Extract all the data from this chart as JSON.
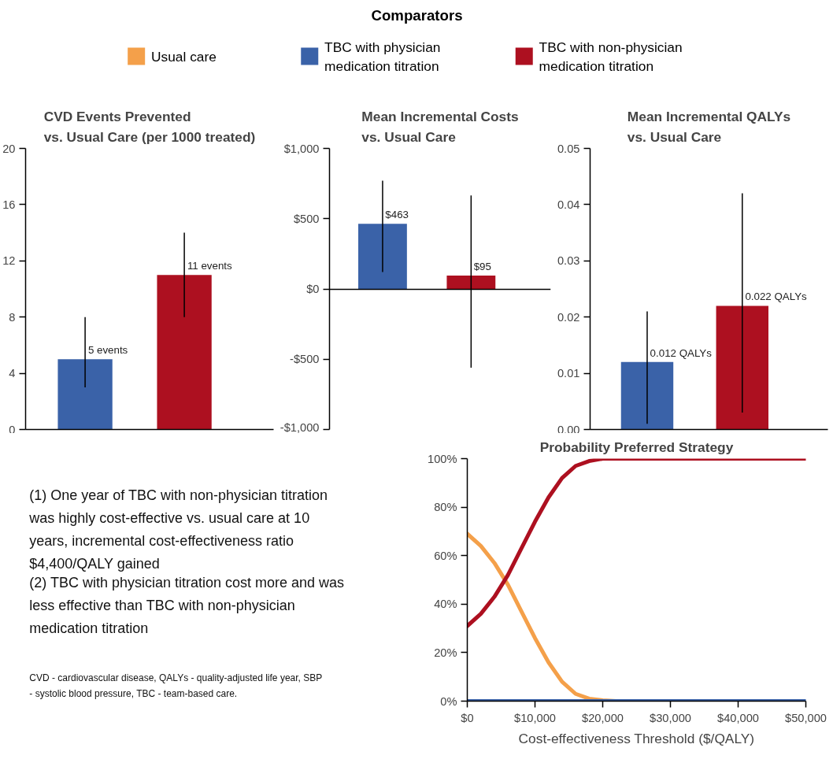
{
  "chart_data": [
    {
      "type": "bar",
      "title": "CVD Events Prevented\nvs. Usual Care (per 1000 treated)",
      "categories": [
        null,
        null
      ],
      "values": [
        5,
        11
      ],
      "colors": [
        "#3a62a8",
        "#ad1020"
      ],
      "errors": [
        [
          3,
          8
        ],
        [
          8,
          14
        ]
      ],
      "value_labels": [
        "5 events",
        "11 events"
      ],
      "ylim": [
        0,
        20
      ],
      "yticks": [
        0,
        4,
        8,
        12,
        16,
        20
      ],
      "tick_labels": "y"
    },
    {
      "type": "bar",
      "title": "Mean Incremental Costs\nvs. Usual Care",
      "categories": [
        null,
        null
      ],
      "values": [
        463,
        95
      ],
      "colors": [
        "#3a62a8",
        "#ad1020"
      ],
      "errors": [
        [
          120,
          770
        ],
        [
          -560,
          665
        ]
      ],
      "value_labels": [
        "$463",
        "$95"
      ],
      "ylim": [
        -1000,
        1000
      ],
      "yticks": [
        {
          "value": -1000,
          "label": "-$1,000"
        },
        {
          "value": -500,
          "label": "-$500"
        },
        {
          "value": 0,
          "label": "$0"
        },
        {
          "value": 500,
          "label": "$500"
        },
        {
          "value": 1000,
          "label": "$1,000"
        }
      ],
      "tick_labels": "y"
    },
    {
      "type": "bar",
      "title": "Mean Incremental QALYs\nvs. Usual Care",
      "categories": [
        null,
        null
      ],
      "values": [
        0.012,
        0.022
      ],
      "colors": [
        "#3a62a8",
        "#ad1020"
      ],
      "errors": [
        [
          0.001,
          0.021
        ],
        [
          0.003,
          0.042
        ]
      ],
      "value_labels": [
        "0.012 QALYs",
        "0.022 QALYs"
      ],
      "ylim": [
        0,
        0.05
      ],
      "yticks": [
        {
          "value": 0,
          "label": "0.00"
        },
        0.01,
        0.02,
        0.03,
        0.04,
        0.05
      ],
      "tick_labels": "y"
    },
    {
      "type": "other",
      "annotations": [
        "(1) One year of TBC with non-physician titration was highly cost-effective vs. usual care at 10 years, incremental cost-effectiveness ratio $4,400/QALY gained",
        "(2) TBC with physician titration cost more and was less effective than TBC with non-physician medication titration",
        "CVD - cardiovascular disease, QALYs - quality-adjusted life year, SBP - systolic blood pressure, TBC - team-based care."
      ]
    },
    {
      "type": "line",
      "title": "Probability Preferred Strategy",
      "xlabel": "Cost-effectiveness Threshold ($/QALY)",
      "legend_title": "Comparators",
      "legend": "top",
      "xlim": [
        0,
        50000
      ],
      "xticks": [
        {
          "value": 0,
          "label": "$0"
        },
        {
          "value": 10000,
          "label": "$10,000"
        },
        {
          "value": 20000,
          "label": "$20,000"
        },
        {
          "value": 30000,
          "label": "$30,000"
        },
        {
          "value": 40000,
          "label": "$40,000"
        },
        {
          "value": 50000,
          "label": "$50,000"
        }
      ],
      "ylim": [
        0,
        100
      ],
      "yticks": [
        {
          "value": 0,
          "label": "0%"
        },
        {
          "value": 20,
          "label": "20%"
        },
        {
          "value": 40,
          "label": "40%"
        },
        {
          "value": 60,
          "label": "60%"
        },
        {
          "value": 80,
          "label": "80%"
        },
        {
          "value": 100,
          "label": "100%"
        }
      ],
      "series": [
        {
          "name": "Usual care",
          "color": "#f4a04a",
          "x": [
            0,
            2000,
            4000,
            6000,
            8000,
            10000,
            12000,
            14000,
            16000,
            18000,
            20000,
            22000
          ],
          "values": [
            69,
            64,
            57,
            48,
            37,
            26,
            16,
            8,
            3,
            1,
            0.3,
            0
          ]
        },
        {
          "name": "TBC with physician medication titration",
          "color": "#3a62a8",
          "x": [
            0,
            50000
          ],
          "values": [
            0,
            0
          ]
        },
        {
          "name": "TBC with non-physician medication titration",
          "color": "#ad1020",
          "x": [
            0,
            2000,
            4000,
            6000,
            8000,
            10000,
            12000,
            14000,
            16000,
            18000,
            20000,
            22000,
            50000
          ],
          "values": [
            31,
            36,
            43,
            52,
            63,
            74,
            84,
            92,
            97,
            99,
            100,
            100,
            100
          ]
        }
      ]
    }
  ]
}
